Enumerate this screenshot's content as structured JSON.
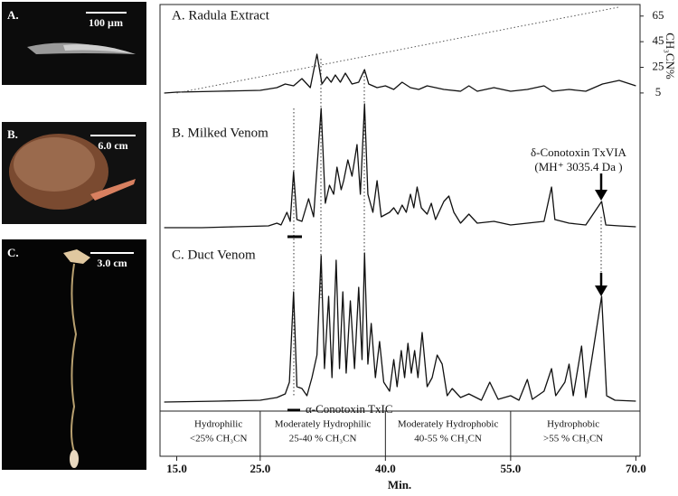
{
  "chart_data": {
    "type": "line",
    "xlabel": "Min.",
    "xlim": [
      13,
      70.5
    ],
    "xticks": [
      {
        "value": 15,
        "label": "15.0"
      },
      {
        "value": 25,
        "label": "25.0"
      },
      {
        "value": 40,
        "label": "40.0"
      },
      {
        "value": 55,
        "label": "55.0"
      },
      {
        "value": 70,
        "label": "70.0"
      }
    ],
    "y2label": "CH₃CN%",
    "y2lim": [
      0,
      74
    ],
    "y2ticks": [
      5,
      25,
      45,
      65
    ],
    "series": [
      {
        "name": "A. Radula Extract",
        "color": "#111",
        "x": [
          13.5,
          15,
          20,
          25,
          27,
          28,
          29,
          30,
          31,
          31.8,
          32.4,
          33,
          33.5,
          34,
          34.6,
          35.2,
          36,
          36.8,
          37.5,
          38,
          39,
          40,
          41,
          42,
          43,
          44,
          45,
          47,
          49,
          50,
          51,
          53,
          55,
          57,
          59,
          60,
          62,
          64,
          66,
          68,
          70
        ],
        "values": [
          2,
          3,
          4,
          5,
          8,
          12,
          10,
          18,
          8,
          45,
          12,
          20,
          14,
          22,
          14,
          24,
          12,
          14,
          28,
          12,
          8,
          10,
          6,
          14,
          8,
          6,
          10,
          6,
          4,
          10,
          4,
          8,
          4,
          6,
          10,
          4,
          6,
          4,
          12,
          16,
          10
        ]
      },
      {
        "name": "B. Milked Venom",
        "color": "#111",
        "x": [
          13.5,
          18,
          22,
          26,
          27,
          27.5,
          28.2,
          28.6,
          29,
          29.4,
          30,
          30.8,
          31.4,
          32.3,
          32.8,
          33.3,
          33.8,
          34.2,
          34.7,
          35,
          35.5,
          36,
          36.6,
          37,
          37.5,
          37.9,
          38.5,
          39,
          39.5,
          40.5,
          41,
          41.5,
          42,
          42.5,
          43,
          43.4,
          43.8,
          44.3,
          45,
          45.5,
          46,
          47,
          47.6,
          48.2,
          49,
          50,
          51,
          53,
          55,
          57,
          59,
          59.9,
          60.3,
          62,
          64,
          65.9,
          66.4,
          68,
          70
        ],
        "values": [
          3,
          3,
          4,
          5,
          8,
          6,
          20,
          10,
          65,
          12,
          10,
          35,
          15,
          135,
          30,
          50,
          40,
          70,
          45,
          55,
          78,
          60,
          95,
          40,
          140,
          40,
          20,
          55,
          15,
          20,
          25,
          18,
          28,
          20,
          40,
          25,
          48,
          25,
          18,
          30,
          12,
          32,
          38,
          20,
          8,
          18,
          8,
          10,
          6,
          8,
          10,
          48,
          12,
          8,
          6,
          32,
          6,
          5,
          4
        ]
      },
      {
        "name": "C. Duct Venom",
        "color": "#111",
        "x": [
          13.5,
          20,
          25,
          27,
          28,
          28.5,
          29,
          29.4,
          30,
          30.6,
          31.2,
          31.8,
          32.3,
          32.7,
          33.2,
          33.6,
          34.1,
          34.5,
          34.9,
          35.3,
          35.8,
          36.3,
          36.8,
          37.2,
          37.5,
          37.9,
          38.3,
          38.8,
          39.3,
          39.8,
          40.5,
          41,
          41.4,
          41.9,
          42.3,
          42.7,
          43.1,
          43.5,
          43.9,
          44.4,
          45,
          45.6,
          46.2,
          46.8,
          47.4,
          48,
          49,
          50,
          51.5,
          52.5,
          53.5,
          55,
          56,
          57,
          57.6,
          59,
          59.9,
          60.4,
          61.5,
          62,
          62.5,
          63.5,
          64,
          65.9,
          66.5,
          67.5,
          70
        ],
        "values": [
          3,
          4,
          5,
          8,
          12,
          25,
          125,
          20,
          18,
          10,
          30,
          55,
          165,
          40,
          120,
          30,
          160,
          40,
          125,
          35,
          115,
          40,
          130,
          50,
          168,
          45,
          90,
          30,
          70,
          25,
          15,
          50,
          20,
          60,
          30,
          68,
          35,
          60,
          30,
          80,
          20,
          30,
          55,
          45,
          10,
          18,
          8,
          12,
          5,
          25,
          6,
          10,
          5,
          28,
          6,
          15,
          40,
          10,
          25,
          45,
          10,
          65,
          8,
          120,
          10,
          5,
          4
        ]
      },
      {
        "axis": "y2",
        "color": "#555",
        "x": [
          15,
          68
        ],
        "values": [
          5,
          72
        ]
      }
    ],
    "annotations": [
      "δ-Conotoxin TxVIA",
      "(MH⁺ 3035.4 Da )",
      "α-Conotoxin TxIC"
    ],
    "regions": [
      {
        "label": "Hydrophilic",
        "range": "<25% CH₃CN"
      },
      {
        "label": "Moderately Hydrophilic",
        "range": "25-40 % CH₃CN"
      },
      {
        "label": "Moderately Hydrophobic",
        "range": "40-55 % CH₃CN"
      },
      {
        "label": "Hydrophobic",
        "range": ">55 % CH₃CN"
      }
    ]
  },
  "photos": [
    {
      "label": "A.",
      "scale": "100 µm"
    },
    {
      "label": "B.",
      "scale": "6.0 cm"
    },
    {
      "label": "C.",
      "scale": "3.0 cm"
    }
  ]
}
